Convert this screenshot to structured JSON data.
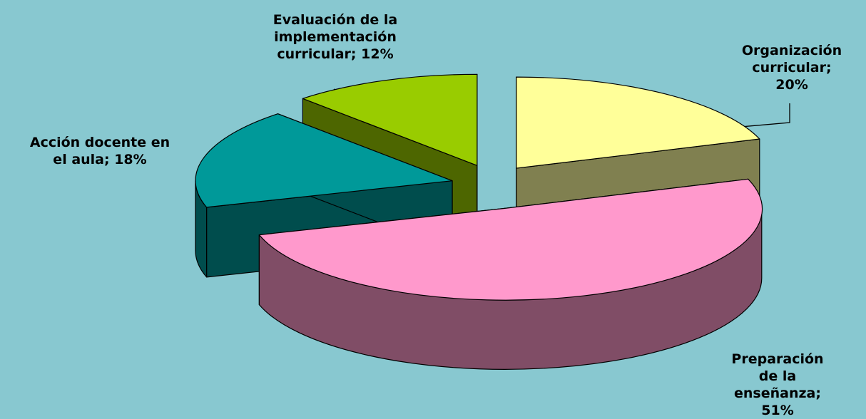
{
  "chart_data": {
    "type": "pie",
    "three_d": true,
    "values": [
      20,
      51,
      18,
      12
    ],
    "value_labels": [
      "Organización\ncurricular; 20%",
      "Preparación de la\nenseñanza; 51%",
      "Acción docente en\nel aula; 18%",
      "Evaluación de la\nimplementación\ncurricular; 12%"
    ],
    "colors": [
      "#ffff99",
      "#ff99cc",
      "#009999",
      "#99cc00"
    ],
    "side_colors": [
      "#808050",
      "#804d66",
      "#004d4d",
      "#4d6600"
    ]
  }
}
